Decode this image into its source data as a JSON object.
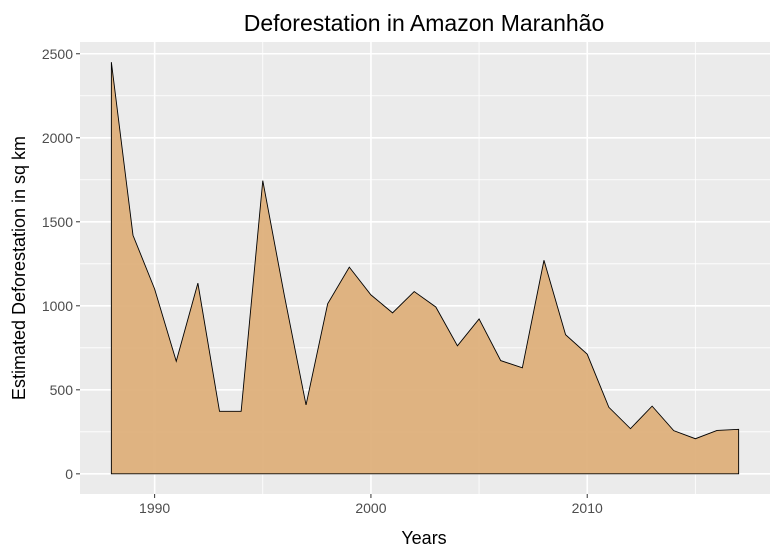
{
  "chart_data": {
    "type": "area",
    "title": "Deforestation in Amazon Maranhão",
    "xlabel": "Years",
    "ylabel": "Estimated Deforestation in sq km",
    "x": [
      1988,
      1989,
      1990,
      1991,
      1992,
      1993,
      1994,
      1995,
      1996,
      1997,
      1998,
      1999,
      2000,
      2001,
      2002,
      2003,
      2004,
      2005,
      2006,
      2007,
      2008,
      2009,
      2010,
      2011,
      2012,
      2013,
      2014,
      2015,
      2016,
      2017
    ],
    "values": [
      2450,
      1420,
      1100,
      670,
      1135,
      372,
      372,
      1745,
      1060,
      410,
      1012,
      1230,
      1065,
      958,
      1085,
      993,
      762,
      922,
      674,
      631,
      1271,
      828,
      712,
      396,
      269,
      403,
      257,
      209,
      258,
      265
    ],
    "xlim": [
      1986.55,
      2018.45
    ],
    "ylim": [
      -120,
      2570
    ],
    "x_ticks": [
      1990,
      2000,
      2010
    ],
    "x_tick_labels": [
      "1990",
      "2000",
      "2010"
    ],
    "y_ticks": [
      0,
      500,
      1000,
      1500,
      2000,
      2500
    ],
    "y_tick_labels": [
      "0",
      "500",
      "1000",
      "1500",
      "2000",
      "2500"
    ],
    "grid": true,
    "fill_color": "#deb07b",
    "line_color": "#000000",
    "panel_background": "#ebebeb",
    "grid_color": "#ffffff"
  }
}
